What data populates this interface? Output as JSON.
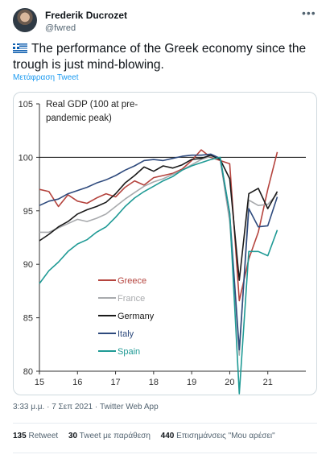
{
  "user": {
    "name": "Frederik Ducrozet",
    "handle": "@fwred"
  },
  "tweet": {
    "flag_icon": "greek-flag",
    "text": "The performance of the Greek economy since the trough is just mind-blowing.",
    "translate_link": "Μετάφραση Tweet",
    "timestamp": "3:33 μ.μ. · 7 Σεπ 2021 · Twitter Web App"
  },
  "stats": {
    "retweets_count": "135",
    "retweets_label": "Retweet",
    "quotes_count": "30",
    "quotes_label": "Tweet με παράθεση",
    "likes_count": "440",
    "likes_label": "Επισημάνσεις \"Μου αρέσει\""
  },
  "chart_data": {
    "type": "line",
    "title": "Real GDP (100 at pre-pandemic peak)",
    "title_lines": [
      "Real GDP (100 at pre-",
      "pandemic peak)"
    ],
    "xlim": [
      2015,
      2022
    ],
    "ylim": [
      80,
      105
    ],
    "x_ticks": [
      15,
      16,
      17,
      18,
      19,
      20,
      21
    ],
    "y_ticks": [
      80,
      85,
      90,
      95,
      100,
      105
    ],
    "reference_line": 100,
    "legend_position": "lower-left",
    "series": [
      {
        "name": "Greece",
        "color": "#b5443e",
        "x": [
          2015.0,
          2015.25,
          2015.5,
          2015.75,
          2016.0,
          2016.25,
          2016.5,
          2016.75,
          2017.0,
          2017.25,
          2017.5,
          2017.75,
          2018.0,
          2018.25,
          2018.5,
          2018.75,
          2019.0,
          2019.25,
          2019.5,
          2019.75,
          2020.0,
          2020.25,
          2020.5,
          2020.75,
          2021.0,
          2021.25
        ],
        "y": [
          97.0,
          96.8,
          95.4,
          96.5,
          95.9,
          95.7,
          96.2,
          96.6,
          96.3,
          97.2,
          97.8,
          97.4,
          98.1,
          98.3,
          98.5,
          98.9,
          99.7,
          100.7,
          100.0,
          99.7,
          99.4,
          86.6,
          90.5,
          93.0,
          97.0,
          100.5
        ]
      },
      {
        "name": "France",
        "color": "#a8aaad",
        "x": [
          2015.0,
          2015.25,
          2015.5,
          2015.75,
          2016.0,
          2016.25,
          2016.5,
          2016.75,
          2017.0,
          2017.25,
          2017.5,
          2017.75,
          2018.0,
          2018.25,
          2018.5,
          2018.75,
          2019.0,
          2019.25,
          2019.5,
          2019.75,
          2020.0,
          2020.25,
          2020.5,
          2020.75,
          2021.0,
          2021.25
        ],
        "y": [
          93.0,
          93.0,
          93.4,
          93.8,
          94.2,
          94.0,
          94.3,
          94.7,
          95.4,
          96.1,
          96.7,
          97.3,
          97.7,
          98.0,
          98.4,
          98.8,
          99.3,
          99.8,
          100.1,
          99.8,
          94.0,
          81.5,
          96.0,
          95.5,
          95.6,
          96.6
        ]
      },
      {
        "name": "Germany",
        "color": "#1a1a1a",
        "x": [
          2015.0,
          2015.25,
          2015.5,
          2015.75,
          2016.0,
          2016.25,
          2016.5,
          2016.75,
          2017.0,
          2017.25,
          2017.5,
          2017.75,
          2018.0,
          2018.25,
          2018.5,
          2018.75,
          2019.0,
          2019.25,
          2019.5,
          2019.75,
          2020.0,
          2020.25,
          2020.5,
          2020.75,
          2021.0,
          2021.25
        ],
        "y": [
          92.2,
          92.8,
          93.5,
          94.0,
          94.7,
          95.1,
          95.4,
          95.8,
          96.6,
          97.6,
          98.3,
          99.1,
          98.7,
          99.2,
          99.0,
          99.3,
          99.8,
          99.9,
          100.2,
          99.8,
          98.0,
          88.5,
          96.6,
          97.1,
          95.2,
          96.8
        ]
      },
      {
        "name": "Italy",
        "color": "#2e4a7d",
        "x": [
          2015.0,
          2015.25,
          2015.5,
          2015.75,
          2016.0,
          2016.25,
          2016.5,
          2016.75,
          2017.0,
          2017.25,
          2017.5,
          2017.75,
          2018.0,
          2018.25,
          2018.5,
          2018.75,
          2019.0,
          2019.25,
          2019.5,
          2019.75,
          2020.0,
          2020.25,
          2020.5,
          2020.75,
          2021.0,
          2021.25
        ],
        "y": [
          95.5,
          95.9,
          96.1,
          96.6,
          96.9,
          97.2,
          97.6,
          97.9,
          98.3,
          98.8,
          99.2,
          99.7,
          99.8,
          99.7,
          99.9,
          100.1,
          100.2,
          100.2,
          100.3,
          99.9,
          94.7,
          82.0,
          95.2,
          93.5,
          93.6,
          96.3
        ]
      },
      {
        "name": "Spain",
        "color": "#1f9a95",
        "x": [
          2015.0,
          2015.25,
          2015.5,
          2015.75,
          2016.0,
          2016.25,
          2016.5,
          2016.75,
          2017.0,
          2017.25,
          2017.5,
          2017.75,
          2018.0,
          2018.25,
          2018.5,
          2018.75,
          2019.0,
          2019.25,
          2019.5,
          2019.75,
          2020.0,
          2020.25,
          2020.5,
          2020.75,
          2021.0,
          2021.25
        ],
        "y": [
          88.2,
          89.4,
          90.2,
          91.2,
          91.9,
          92.3,
          93.0,
          93.5,
          94.4,
          95.4,
          96.2,
          96.8,
          97.3,
          97.8,
          98.2,
          98.8,
          99.2,
          99.5,
          99.8,
          100.0,
          94.8,
          77.9,
          91.2,
          91.2,
          90.8,
          93.2
        ]
      }
    ]
  }
}
